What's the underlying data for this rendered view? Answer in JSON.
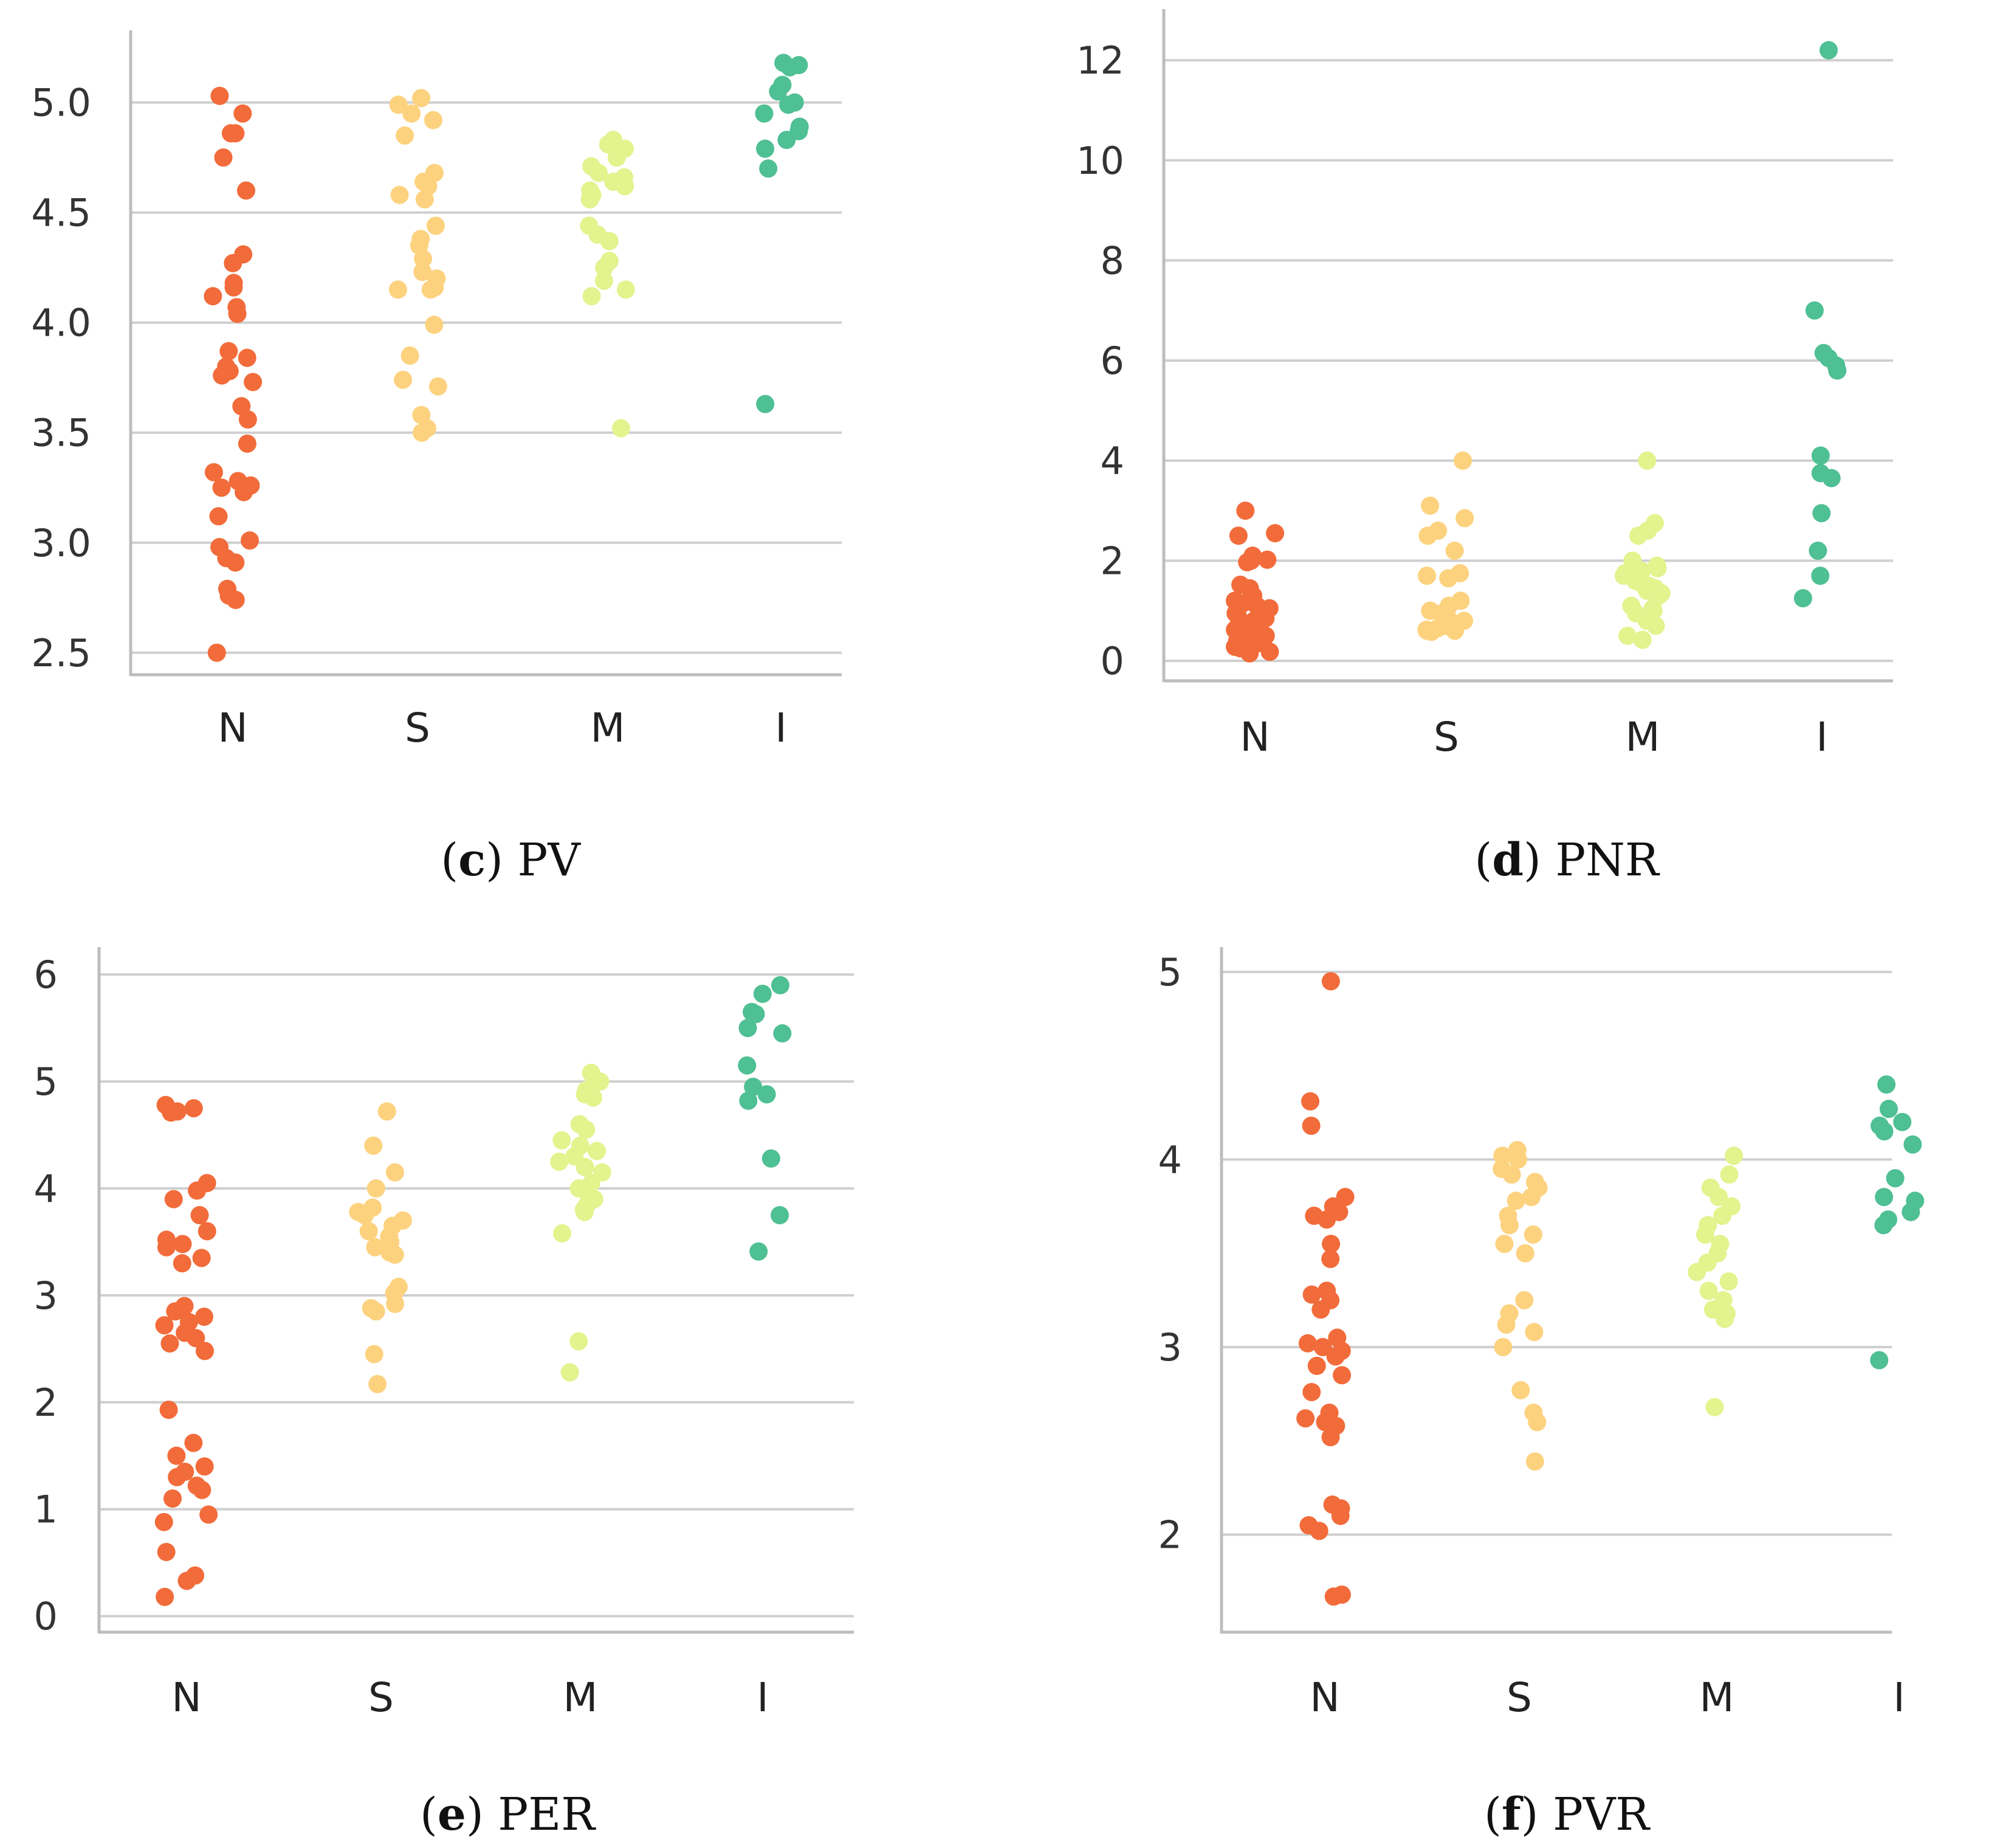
{
  "chart_data": [
    {
      "type": "scatter",
      "style": "strip",
      "caption_letter": "c",
      "caption_title": "PV",
      "categories": [
        "N",
        "S",
        "M",
        "I"
      ],
      "ylim": [
        2.4,
        5.3
      ],
      "yticks": [
        2.5,
        3.0,
        3.5,
        4.0,
        4.5,
        5.0
      ],
      "ytick_labels": [
        "2.5",
        "3.0",
        "3.5",
        "4.0",
        "4.5",
        "5.0"
      ],
      "series": [
        {
          "name": "N",
          "color": "#f26b3a",
          "values": [
            5.03,
            4.95,
            4.86,
            4.86,
            4.75,
            4.6,
            4.31,
            4.27,
            4.18,
            4.16,
            4.12,
            4.07,
            4.04,
            3.87,
            3.84,
            3.8,
            3.78,
            3.76,
            3.73,
            3.62,
            3.56,
            3.45,
            3.32,
            3.28,
            3.26,
            3.25,
            3.23,
            3.12,
            3.01,
            2.98,
            2.93,
            2.91,
            2.79,
            2.76,
            2.74,
            2.5
          ]
        },
        {
          "name": "S",
          "color": "#fdd27f",
          "values": [
            5.02,
            4.99,
            4.95,
            4.92,
            4.85,
            4.68,
            4.64,
            4.62,
            4.58,
            4.56,
            4.44,
            4.38,
            4.35,
            4.29,
            4.23,
            4.2,
            4.16,
            4.15,
            4.15,
            3.99,
            3.85,
            3.74,
            3.71,
            3.58,
            3.52,
            3.5
          ]
        },
        {
          "name": "M",
          "color": "#e3f38e",
          "values": [
            4.83,
            4.81,
            4.79,
            4.75,
            4.71,
            4.68,
            4.66,
            4.64,
            4.62,
            4.6,
            4.58,
            4.56,
            4.44,
            4.4,
            4.37,
            4.28,
            4.25,
            4.19,
            4.15,
            4.12,
            3.52
          ]
        },
        {
          "name": "I",
          "color": "#4fbf94",
          "values": [
            5.18,
            5.17,
            5.16,
            5.08,
            5.05,
            5.0,
            4.99,
            4.95,
            4.89,
            4.87,
            4.83,
            4.79,
            4.7,
            3.63
          ]
        }
      ]
    },
    {
      "type": "scatter",
      "style": "strip",
      "caption_letter": "d",
      "caption_title": "PNR",
      "categories": [
        "N",
        "S",
        "M",
        "I"
      ],
      "ylim": [
        -0.4,
        12.9
      ],
      "yticks": [
        0,
        2,
        4,
        6,
        8,
        10,
        12
      ],
      "ytick_labels": [
        "0",
        "2",
        "4",
        "6",
        "8",
        "10",
        "12"
      ],
      "series": [
        {
          "name": "N",
          "color": "#f26b3a",
          "values": [
            3.0,
            2.55,
            2.5,
            2.1,
            2.02,
            2.0,
            1.97,
            1.52,
            1.45,
            1.3,
            1.2,
            1.15,
            1.1,
            1.05,
            1.0,
            0.95,
            0.9,
            0.85,
            0.8,
            0.75,
            0.7,
            0.65,
            0.62,
            0.58,
            0.55,
            0.5,
            0.48,
            0.45,
            0.4,
            0.35,
            0.3,
            0.28,
            0.25,
            0.2,
            0.18,
            0.15
          ]
        },
        {
          "name": "S",
          "color": "#fdd27f",
          "values": [
            4.0,
            3.1,
            2.85,
            2.6,
            2.5,
            2.2,
            1.75,
            1.7,
            1.65,
            1.2,
            1.1,
            1.0,
            0.95,
            0.9,
            0.8,
            0.75,
            0.7,
            0.65,
            0.62,
            0.6,
            0.6,
            0.58
          ]
        },
        {
          "name": "M",
          "color": "#e3f38e",
          "values": [
            4.0,
            2.75,
            2.6,
            2.5,
            2.0,
            1.9,
            1.85,
            1.8,
            1.75,
            1.7,
            1.6,
            1.55,
            1.5,
            1.45,
            1.4,
            1.35,
            1.3,
            1.1,
            1.05,
            1.0,
            0.95,
            0.85,
            0.8,
            0.7,
            0.5,
            0.42
          ]
        },
        {
          "name": "I",
          "color": "#4fbf94",
          "values": [
            12.2,
            7.0,
            6.15,
            6.05,
            5.9,
            5.8,
            4.1,
            3.75,
            3.65,
            2.95,
            2.2,
            1.7,
            1.25
          ]
        }
      ]
    },
    {
      "type": "scatter",
      "style": "strip",
      "caption_letter": "e",
      "caption_title": "PER",
      "categories": [
        "N",
        "S",
        "M",
        "I"
      ],
      "ylim": [
        -0.15,
        6.2
      ],
      "yticks": [
        0,
        1,
        2,
        3,
        4,
        5,
        6
      ],
      "ytick_labels": [
        "0",
        "1",
        "2",
        "3",
        "4",
        "5",
        "6"
      ],
      "series": [
        {
          "name": "N",
          "color": "#f26b3a",
          "values": [
            4.78,
            4.75,
            4.72,
            4.71,
            4.05,
            3.98,
            3.9,
            3.75,
            3.6,
            3.52,
            3.48,
            3.45,
            3.35,
            3.3,
            2.9,
            2.85,
            2.8,
            2.75,
            2.72,
            2.65,
            2.6,
            2.55,
            2.48,
            1.93,
            1.62,
            1.5,
            1.4,
            1.35,
            1.3,
            1.22,
            1.18,
            1.1,
            0.95,
            0.88,
            0.6,
            0.38,
            0.33,
            0.18
          ]
        },
        {
          "name": "S",
          "color": "#fdd27f",
          "values": [
            4.72,
            4.4,
            4.15,
            4.0,
            3.82,
            3.78,
            3.75,
            3.7,
            3.65,
            3.6,
            3.55,
            3.5,
            3.45,
            3.4,
            3.38,
            3.08,
            3.02,
            2.92,
            2.88,
            2.85,
            2.45,
            2.17
          ]
        },
        {
          "name": "M",
          "color": "#e3f38e",
          "values": [
            5.08,
            5.0,
            4.92,
            4.88,
            4.85,
            4.6,
            4.55,
            4.45,
            4.4,
            4.35,
            4.3,
            4.25,
            4.2,
            4.15,
            4.05,
            4.0,
            3.95,
            3.9,
            3.85,
            3.8,
            3.78,
            3.58,
            2.57,
            2.28
          ]
        },
        {
          "name": "I",
          "color": "#4fbf94",
          "values": [
            5.9,
            5.82,
            5.65,
            5.63,
            5.5,
            5.45,
            5.15,
            4.95,
            4.88,
            4.82,
            4.28,
            3.75,
            3.41
          ]
        }
      ]
    },
    {
      "type": "scatter",
      "style": "strip",
      "caption_letter": "f",
      "caption_title": "PVR",
      "categories": [
        "N",
        "S",
        "M",
        "I"
      ],
      "ylim": [
        1.48,
        5.1
      ],
      "yticks": [
        2,
        3,
        4,
        5
      ],
      "ytick_labels": [
        "2",
        "3",
        "4",
        "5"
      ],
      "series": [
        {
          "name": "N",
          "color": "#f26b3a",
          "values": [
            4.95,
            4.31,
            4.18,
            3.8,
            3.75,
            3.72,
            3.7,
            3.68,
            3.55,
            3.47,
            3.3,
            3.28,
            3.25,
            3.2,
            3.05,
            3.02,
            3.0,
            2.98,
            2.95,
            2.9,
            2.85,
            2.76,
            2.65,
            2.62,
            2.6,
            2.58,
            2.52,
            2.16,
            2.14,
            2.1,
            2.05,
            2.02,
            1.68,
            1.67
          ]
        },
        {
          "name": "S",
          "color": "#fdd27f",
          "values": [
            4.05,
            4.02,
            4.0,
            3.95,
            3.92,
            3.88,
            3.85,
            3.8,
            3.78,
            3.7,
            3.65,
            3.6,
            3.55,
            3.5,
            3.25,
            3.18,
            3.12,
            3.08,
            3.0,
            2.77,
            2.65,
            2.6,
            2.39
          ]
        },
        {
          "name": "M",
          "color": "#e3f38e",
          "values": [
            4.02,
            3.92,
            3.85,
            3.8,
            3.75,
            3.7,
            3.65,
            3.6,
            3.55,
            3.5,
            3.45,
            3.4,
            3.35,
            3.3,
            3.25,
            3.2,
            3.18,
            3.15,
            2.68
          ]
        },
        {
          "name": "I",
          "color": "#4fbf94",
          "values": [
            4.4,
            4.27,
            4.2,
            4.18,
            4.15,
            4.08,
            3.9,
            3.8,
            3.78,
            3.72,
            3.68,
            3.65,
            2.93
          ]
        }
      ]
    }
  ]
}
